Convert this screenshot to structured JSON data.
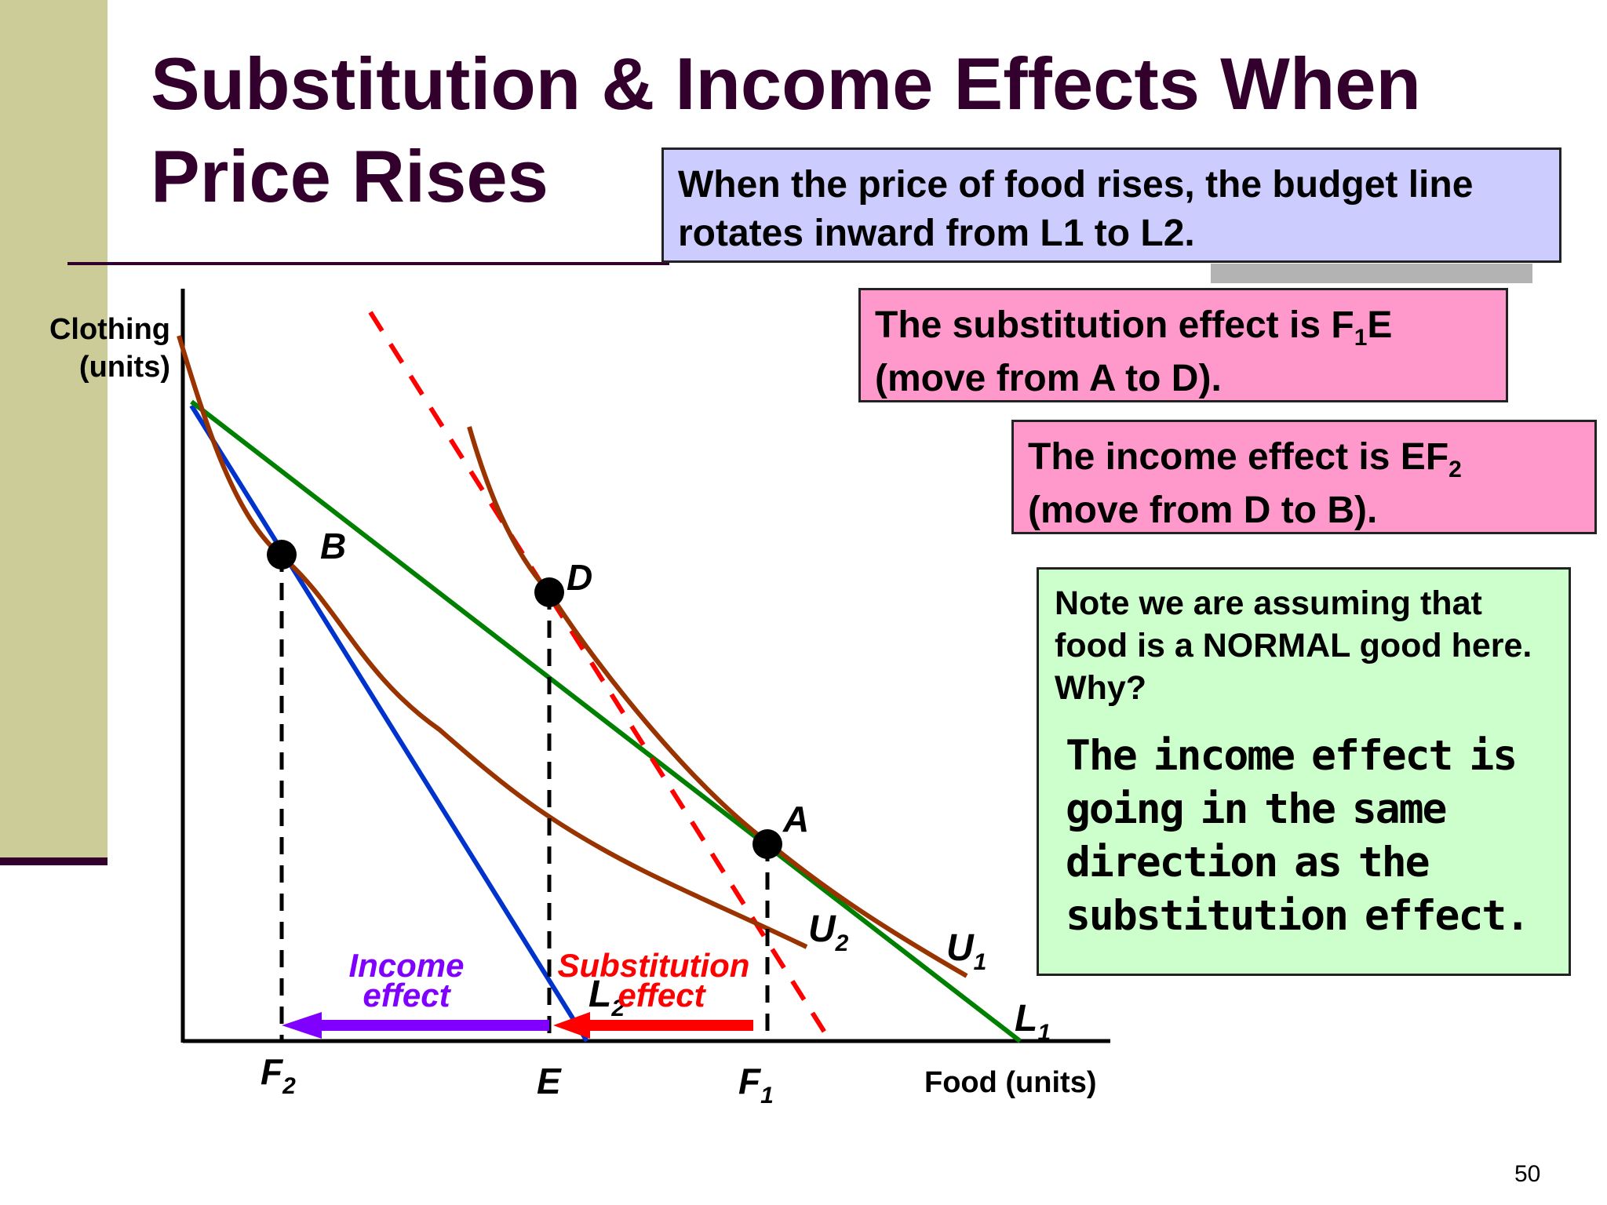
{
  "slide": {
    "title": "Substitution & Income Effects When Price Rises",
    "page_number": "50"
  },
  "callouts": {
    "price_rise": "When the price of food rises, the budget line rotates inward from L1 to L2.",
    "substitution": {
      "text": "The substitution effect is F",
      "sub": "1",
      "tail": "E",
      "line2": "(move from A to D)."
    },
    "income": {
      "text": "The income effect is EF",
      "sub": "2",
      "line2": "(move from D to B)."
    },
    "note": {
      "question": "Note we are assuming that food is a NORMAL good here. Why?",
      "answer": "The income effect is going in the same direction as the substitution effect."
    }
  },
  "diagram": {
    "y_axis_label": [
      "Clothing",
      "(units)"
    ],
    "x_axis_label": "Food (units)",
    "points": [
      {
        "label": "A",
        "on": "U1 and L1"
      },
      {
        "label": "B",
        "on": "U2 and L2"
      },
      {
        "label": "D",
        "on": "U1, tangent to dashed line parallel to L2"
      }
    ],
    "x_markers": [
      {
        "main": "F",
        "sub": "2"
      },
      {
        "main": "E",
        "sub": ""
      },
      {
        "main": "F",
        "sub": "1"
      }
    ],
    "curves": [
      {
        "label": "U",
        "sub": "1",
        "color": "#993300"
      },
      {
        "label": "U",
        "sub": "2",
        "color": "#993300"
      }
    ],
    "budget_lines": [
      {
        "label": "L",
        "sub": "1",
        "color": "#008000"
      },
      {
        "label": "L",
        "sub": "2",
        "color": "#0033cc"
      }
    ],
    "dashed_line_color": "#ff0000",
    "arrows": [
      {
        "label_line1": "Income",
        "label_line2": "effect",
        "color": "#8000ff",
        "from": "E",
        "to": "F2"
      },
      {
        "label_line1": "Substitution",
        "label_line2": "effect",
        "color": "#ff0000",
        "from": "F1",
        "to": "E"
      }
    ]
  }
}
